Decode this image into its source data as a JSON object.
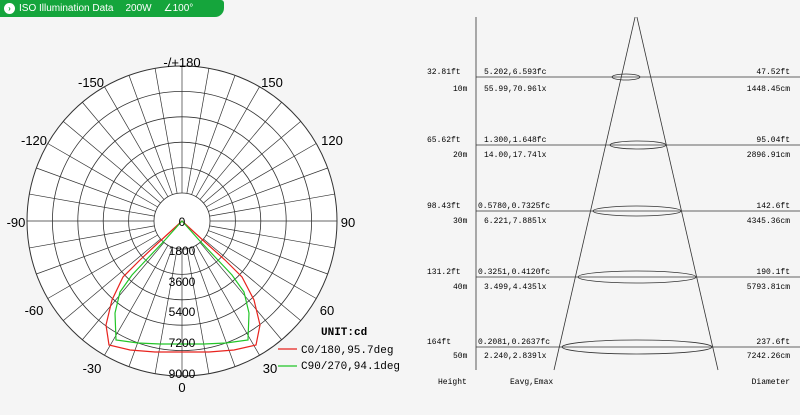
{
  "tab": {
    "icon": "info-icon",
    "title": "ISO Illumination  Data",
    "wattage": "200W",
    "beam_angle": "100°"
  },
  "polar": {
    "angle_labels": [
      "-/+180",
      "-150",
      "150",
      "-120",
      "120",
      "-90",
      "90",
      "-60",
      "60",
      "-30",
      "30",
      "0"
    ],
    "cd_labels": [
      "0",
      "1800",
      "3600",
      "5400",
      "7200",
      "9000"
    ],
    "unit_label": "UNIT:cd",
    "legend": [
      {
        "name": "C0/180,95.7deg",
        "color": "#e8231e"
      },
      {
        "name": "C90/270,94.1deg",
        "color": "#22c527"
      }
    ]
  },
  "illuminance": {
    "rows": [
      {
        "height_ft": "32.81ft",
        "height_m": "10m",
        "fc": "5.202,6.593fc",
        "lx": "55.99,70.96lx",
        "dia_ft": "47.52ft",
        "dia_cm": "1448.45cm"
      },
      {
        "height_ft": "65.62ft",
        "height_m": "20m",
        "fc": "1.300,1.648fc",
        "lx": "14.00,17.74lx",
        "dia_ft": "95.04ft",
        "dia_cm": "2896.91cm"
      },
      {
        "height_ft": "98.43ft",
        "height_m": "30m",
        "fc": "0.5780,0.7325fc",
        "lx": "6.221,7.885lx",
        "dia_ft": "142.6ft",
        "dia_cm": "4345.36cm"
      },
      {
        "height_ft": "131.2ft",
        "height_m": "40m",
        "fc": "0.3251,0.4120fc",
        "lx": "3.499,4.435lx",
        "dia_ft": "190.1ft",
        "dia_cm": "5793.81cm"
      },
      {
        "height_ft": "164ft",
        "height_m": "50m",
        "fc": "0.2081,0.2637fc",
        "lx": "2.240,2.839lx",
        "dia_ft": "237.6ft",
        "dia_cm": "7242.26cm"
      }
    ],
    "footer": {
      "height": "Height",
      "eavg": "Eavg,Emax",
      "diameter": "Diameter"
    }
  }
}
